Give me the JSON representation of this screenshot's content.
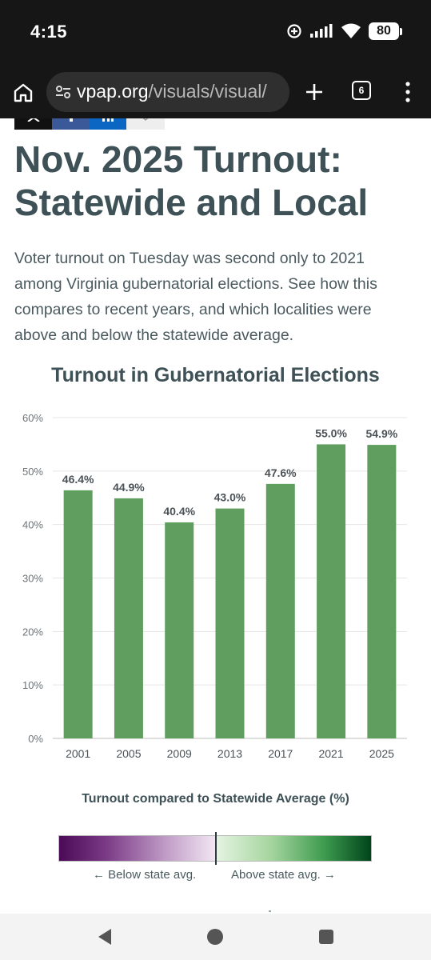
{
  "status_bar": {
    "time": "4:15",
    "battery": "80",
    "icons": [
      "data-saver-icon",
      "signal-icon",
      "wifi-icon",
      "battery-icon"
    ]
  },
  "browser": {
    "url_domain": "vpap.org",
    "url_path": "/visuals/visual/",
    "tab_count": "6",
    "icons": [
      "home-icon",
      "tune-icon",
      "plus-icon",
      "tabs-icon",
      "more-vertical-icon"
    ]
  },
  "share": {
    "icons": [
      "x-icon",
      "facebook-icon",
      "linkedin-icon",
      "email-icon"
    ]
  },
  "article": {
    "title": "Nov. 2025 Turnout: Statewide and Local",
    "intro": "Voter turnout on Tuesday was second only to 2021 among Virginia gubernatorial elections. See how this compares to recent years, and which localities were above and below the statewide average."
  },
  "chart_data": {
    "type": "bar",
    "title": "Turnout in Gubernatorial Elections",
    "categories": [
      "2001",
      "2005",
      "2009",
      "2013",
      "2017",
      "2021",
      "2025"
    ],
    "values": [
      46.4,
      44.9,
      40.4,
      43.0,
      47.6,
      55.0,
      54.9
    ],
    "value_labels": [
      "46.4%",
      "44.9%",
      "40.4%",
      "43.0%",
      "47.6%",
      "55.0%",
      "54.9%"
    ],
    "ylim": [
      0,
      60
    ],
    "yticks": [
      0,
      10,
      20,
      30,
      40,
      50,
      60
    ],
    "ytick_labels": [
      "0%",
      "10%",
      "20%",
      "30%",
      "40%",
      "50%",
      "60%"
    ],
    "xlabel": "",
    "ylabel": "",
    "grid": true,
    "bar_color": "#5f9e5f"
  },
  "legend": {
    "title": "Turnout compared to Statewide Average (%)",
    "below_label": "← Below state avg.",
    "above_label": "Above state avg. →",
    "colors": [
      "#4b0a55",
      "#f1e6f2",
      "#e6f4e3",
      "#00441b"
    ]
  },
  "nav_bar": {
    "icons": [
      "back-icon",
      "home-circle-icon",
      "recents-icon"
    ]
  }
}
